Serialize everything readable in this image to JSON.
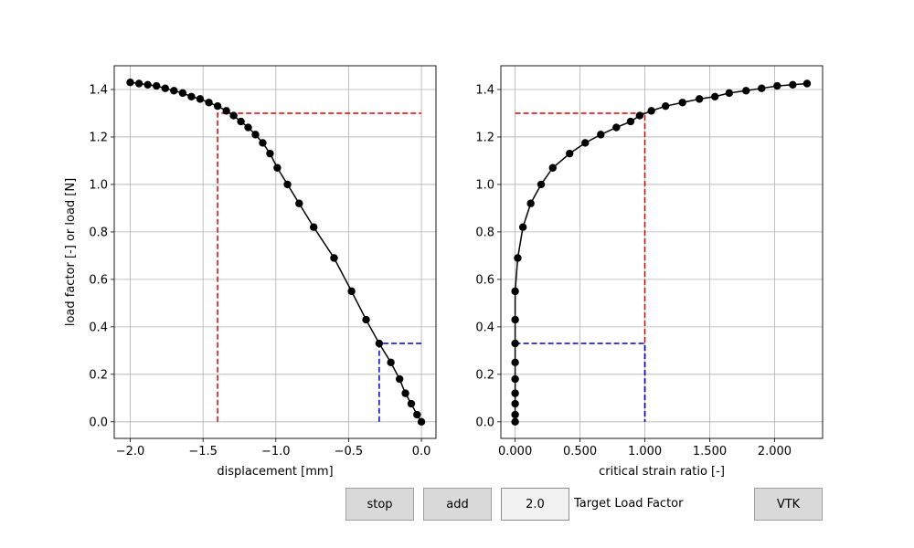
{
  "chart_data": [
    {
      "type": "line",
      "xlabel": "displacement [mm]",
      "ylabel": "load factor [-] or load [N]",
      "xlim": [
        -2.11,
        0.1
      ],
      "ylim": [
        -0.07,
        1.5
      ],
      "xticks": [
        -2.0,
        -1.5,
        -1.0,
        -0.5,
        0.0
      ],
      "xtick_labels": [
        "−2.0",
        "−1.5",
        "−1.0",
        "−0.5",
        "0.0"
      ],
      "yticks": [
        0.0,
        0.2,
        0.4,
        0.6,
        0.8,
        1.0,
        1.2,
        1.4
      ],
      "ytick_labels": [
        "0.0",
        "0.2",
        "0.4",
        "0.6",
        "0.8",
        "1.0",
        "1.2",
        "1.4"
      ],
      "grid": true,
      "series": [
        {
          "color": "#000000",
          "marker": "circle",
          "x": [
            0.0,
            -0.03,
            -0.07,
            -0.11,
            -0.15,
            -0.21,
            -0.29,
            -0.38,
            -0.48,
            -0.6,
            -0.74,
            -0.84,
            -0.92,
            -0.99,
            -1.04,
            -1.09,
            -1.14,
            -1.19,
            -1.24,
            -1.29,
            -1.34,
            -1.4,
            -1.46,
            -1.52,
            -1.58,
            -1.64,
            -1.7,
            -1.76,
            -1.82,
            -1.88,
            -1.94,
            -2.0
          ],
          "y": [
            0.0,
            0.03,
            0.076,
            0.12,
            0.18,
            0.25,
            0.33,
            0.43,
            0.55,
            0.69,
            0.82,
            0.92,
            1.0,
            1.07,
            1.13,
            1.175,
            1.21,
            1.24,
            1.265,
            1.29,
            1.31,
            1.33,
            1.345,
            1.36,
            1.37,
            1.385,
            1.395,
            1.405,
            1.415,
            1.42,
            1.425,
            1.43
          ]
        }
      ],
      "guides": [
        {
          "color": "#dd0000",
          "x": [
            -1.4,
            -1.4,
            0.0
          ],
          "y": [
            0.0,
            1.3,
            1.3
          ]
        },
        {
          "color": "#0000cc",
          "x": [
            -0.29,
            -0.29,
            0.0
          ],
          "y": [
            0.0,
            0.33,
            0.33
          ]
        }
      ]
    },
    {
      "type": "line",
      "xlabel": "critical strain ratio [-]",
      "xlim": [
        -0.11,
        2.37
      ],
      "ylim": [
        -0.07,
        1.5
      ],
      "xticks": [
        0,
        0.5,
        1.0,
        1.5,
        2.0
      ],
      "xtick_labels": [
        "0.000",
        "0.500",
        "1.000",
        "1.500",
        "2.000"
      ],
      "yticks": [
        0.0,
        0.2,
        0.4,
        0.6,
        0.8,
        1.0,
        1.2,
        1.4
      ],
      "ytick_labels": [
        "0.0",
        "0.2",
        "0.4",
        "0.6",
        "0.8",
        "1.0",
        "1.2",
        "1.4"
      ],
      "grid": true,
      "series": [
        {
          "color": "#000000",
          "marker": "circle",
          "x": [
            0.0,
            0.0,
            0.0,
            0.0,
            0.0,
            0.0,
            0.0,
            0.0,
            0.0,
            0.02,
            0.06,
            0.12,
            0.2,
            0.29,
            0.42,
            0.54,
            0.66,
            0.78,
            0.89,
            0.96,
            1.05,
            1.16,
            1.29,
            1.42,
            1.54,
            1.65,
            1.78,
            1.9,
            2.02,
            2.14,
            2.25
          ],
          "y": [
            0.0,
            0.03,
            0.076,
            0.12,
            0.18,
            0.25,
            0.33,
            0.43,
            0.55,
            0.69,
            0.82,
            0.92,
            1.0,
            1.07,
            1.13,
            1.175,
            1.21,
            1.24,
            1.265,
            1.29,
            1.31,
            1.33,
            1.345,
            1.36,
            1.37,
            1.385,
            1.395,
            1.405,
            1.415,
            1.42,
            1.425
          ]
        }
      ],
      "guides": [
        {
          "color": "#dd0000",
          "x": [
            0.0,
            1.0,
            1.0
          ],
          "y": [
            1.3,
            1.3,
            0.0
          ]
        },
        {
          "color": "#0000cc",
          "x": [
            0.0,
            1.0,
            1.0
          ],
          "y": [
            0.33,
            0.33,
            0.0
          ]
        }
      ]
    }
  ],
  "controls": {
    "stop_label": "stop",
    "add_label": "add",
    "target_value": "2.0",
    "target_label": "Target Load Factor",
    "vtk_label": "VTK"
  }
}
